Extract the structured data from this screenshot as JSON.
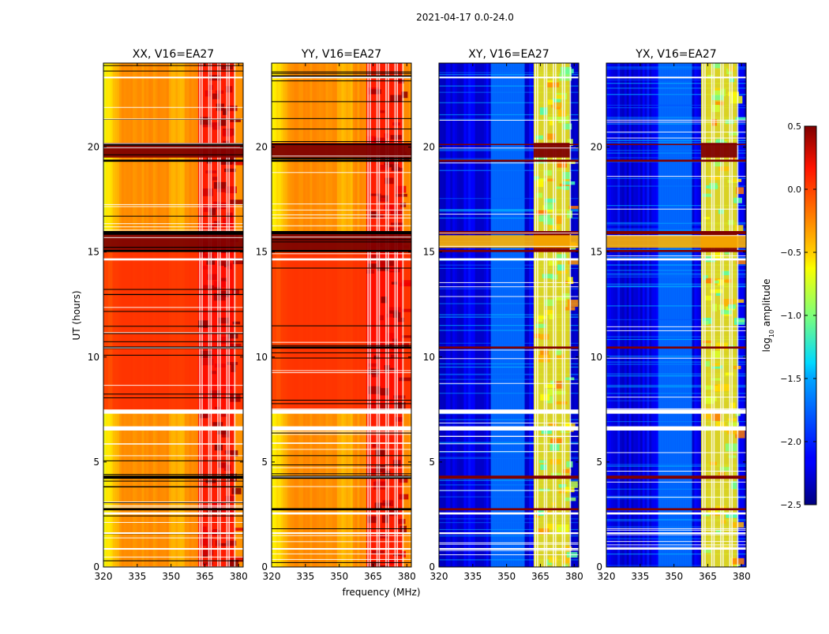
{
  "suptitle": "2021-04-17 0.0-24.0",
  "chart_data": {
    "type": "heatmap",
    "xlabel": "frequency (MHz)",
    "ylabel": "UT (hours)",
    "xlim": [
      320,
      382
    ],
    "ylim": [
      0,
      24
    ],
    "xticks": [
      320,
      335,
      350,
      365,
      380
    ],
    "xtick_labels": [
      "320",
      "335",
      "350",
      "365",
      "380"
    ],
    "yticks": [
      0,
      5,
      10,
      15,
      20
    ],
    "ytick_labels": [
      "0",
      "5",
      "10",
      "15",
      "20"
    ],
    "panels": [
      {
        "title": "XX, V16=EA27",
        "kind": "parallel",
        "base_log_amp": -0.3,
        "rfi_log_amp": 0.5
      },
      {
        "title": "YY, V16=EA27",
        "kind": "parallel",
        "base_log_amp": -0.3,
        "rfi_log_amp": 0.5
      },
      {
        "title": "XY, V16=EA27",
        "kind": "cross",
        "base_log_amp": -2.2,
        "rfi_log_amp": 0.5
      },
      {
        "title": "YX, V16=EA27",
        "kind": "cross",
        "base_log_amp": -2.2,
        "rfi_log_amp": 0.5
      }
    ],
    "rfi_band_mhz": [
      362,
      378
    ],
    "rfi_columns_mhz": [
      362.5,
      363.5,
      366.5,
      367.5,
      370.5,
      371.5,
      374.5,
      375.5,
      378.0
    ],
    "flagged_hours_white": [
      [
        7.3,
        7.5
      ],
      [
        6.5,
        6.7
      ],
      [
        2.5,
        2.6
      ],
      [
        14.6,
        14.7
      ],
      [
        1.6,
        1.65
      ],
      [
        0.85,
        0.9
      ],
      [
        23.3,
        23.35
      ]
    ],
    "flagged_hours_black": [
      [
        15.85,
        16.0
      ],
      [
        15.0,
        15.1
      ],
      [
        10.4,
        10.5
      ],
      [
        4.2,
        4.35
      ],
      [
        2.7,
        2.8
      ],
      [
        20.1,
        20.15
      ],
      [
        19.3,
        19.4
      ]
    ],
    "saturated_hours": [
      [
        15.1,
        15.85
      ],
      [
        19.5,
        20.2
      ]
    ],
    "colorbar": {
      "label": "log10 amplitude",
      "range": [
        -2.5,
        0.5
      ],
      "ticks": [
        0.5,
        0.0,
        -0.5,
        -1.0,
        -1.5,
        -2.0,
        -2.5
      ],
      "tick_labels": [
        "0.5",
        "0.0",
        "−0.5",
        "−1.0",
        "−1.5",
        "−2.0",
        "−2.5"
      ],
      "colormap": "jet"
    }
  }
}
